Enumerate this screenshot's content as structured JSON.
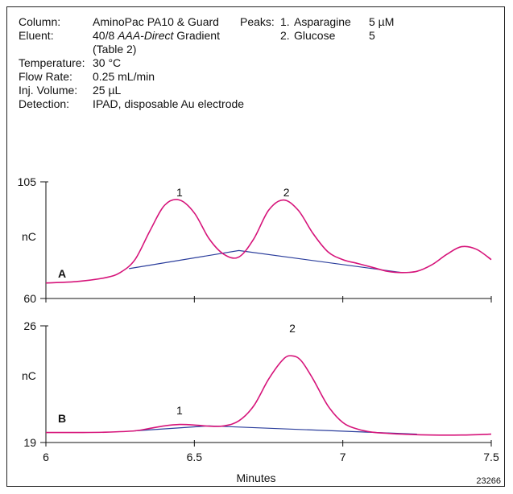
{
  "conditions": {
    "column": {
      "label": "Column:",
      "value": "AminoPac PA10 & Guard"
    },
    "eluent": {
      "label": "Eluent:",
      "value_pre": "40/8 ",
      "value_italic": "AAA-Direct",
      "value_post": " Gradient",
      "value_line2": "(Table 2)"
    },
    "temperature": {
      "label": "Temperature:",
      "value": "30 °C"
    },
    "flow_rate": {
      "label": "Flow Rate:",
      "value": "0.25 mL/min"
    },
    "inj_volume": {
      "label": "Inj. Volume:",
      "value": "25 µL"
    },
    "detection": {
      "label": "Detection:",
      "value": "IPAD, disposable Au electrode"
    }
  },
  "peaks_table": {
    "label": "Peaks:",
    "rows": [
      {
        "num": "1.",
        "name": "Asparagine",
        "amount": "5 µM"
      },
      {
        "num": "2.",
        "name": "Glucose",
        "amount": "5"
      }
    ]
  },
  "figure_id": "23266",
  "colors": {
    "trace": "#d6147a",
    "baseline": "#2a3d9c",
    "axis": "#111111"
  },
  "chart_data": [
    {
      "type": "line",
      "panel": "A",
      "ylabel": "nC",
      "xlim": [
        6,
        7.5
      ],
      "ylim": [
        60,
        105
      ],
      "yticks": [
        {
          "value": 60,
          "label": "60"
        },
        {
          "value": 105,
          "label": "105"
        }
      ],
      "series": [
        {
          "role": "chromatogram",
          "x": [
            6.0,
            6.1,
            6.2,
            6.25,
            6.3,
            6.35,
            6.4,
            6.45,
            6.5,
            6.55,
            6.6,
            6.65,
            6.7,
            6.75,
            6.8,
            6.85,
            6.9,
            6.95,
            7.0,
            7.05,
            7.1,
            7.15,
            7.2,
            7.25,
            7.3,
            7.35,
            7.4,
            7.45,
            7.5
          ],
          "y": [
            66,
            66.5,
            68,
            70,
            75,
            86,
            96,
            98,
            93,
            83,
            77,
            76,
            83,
            94,
            98,
            94,
            85,
            78,
            75,
            73.5,
            72,
            70.5,
            70,
            70.5,
            73,
            77,
            80,
            79,
            75
          ]
        },
        {
          "role": "baseline",
          "x": [
            6.28,
            6.65,
            7.2
          ],
          "y": [
            71.5,
            78.5,
            70
          ]
        }
      ],
      "annotations": [
        {
          "text": "1",
          "x": 6.45
        },
        {
          "text": "2",
          "x": 6.81
        }
      ]
    },
    {
      "type": "line",
      "panel": "B",
      "ylabel": "nC",
      "xlabel": "Minutes",
      "xlim": [
        6,
        7.5
      ],
      "ylim": [
        19,
        26
      ],
      "xticks": [
        {
          "value": 6,
          "label": "6"
        },
        {
          "value": 6.5,
          "label": "6.5"
        },
        {
          "value": 7,
          "label": "7"
        },
        {
          "value": 7.5,
          "label": "7.5"
        }
      ],
      "yticks": [
        {
          "value": 19,
          "label": "19"
        },
        {
          "value": 26,
          "label": "26"
        }
      ],
      "series": [
        {
          "role": "chromatogram",
          "x": [
            6.0,
            6.1,
            6.2,
            6.3,
            6.35,
            6.4,
            6.45,
            6.5,
            6.55,
            6.6,
            6.65,
            6.7,
            6.75,
            6.8,
            6.83,
            6.86,
            6.9,
            6.95,
            7.0,
            7.05,
            7.1,
            7.15,
            7.2,
            7.3,
            7.4,
            7.5
          ],
          "y": [
            19.6,
            19.6,
            19.62,
            19.7,
            19.85,
            20.0,
            20.08,
            20.05,
            19.98,
            20.0,
            20.3,
            21.2,
            22.8,
            24.0,
            24.2,
            23.9,
            22.8,
            21.2,
            20.2,
            19.8,
            19.62,
            19.55,
            19.5,
            19.45,
            19.45,
            19.5
          ]
        },
        {
          "role": "baseline",
          "x": [
            6.3,
            6.55,
            7.25
          ],
          "y": [
            19.7,
            20.0,
            19.5
          ]
        }
      ],
      "annotations": [
        {
          "text": "1",
          "x": 6.45
        },
        {
          "text": "2",
          "x": 6.83
        }
      ]
    }
  ]
}
